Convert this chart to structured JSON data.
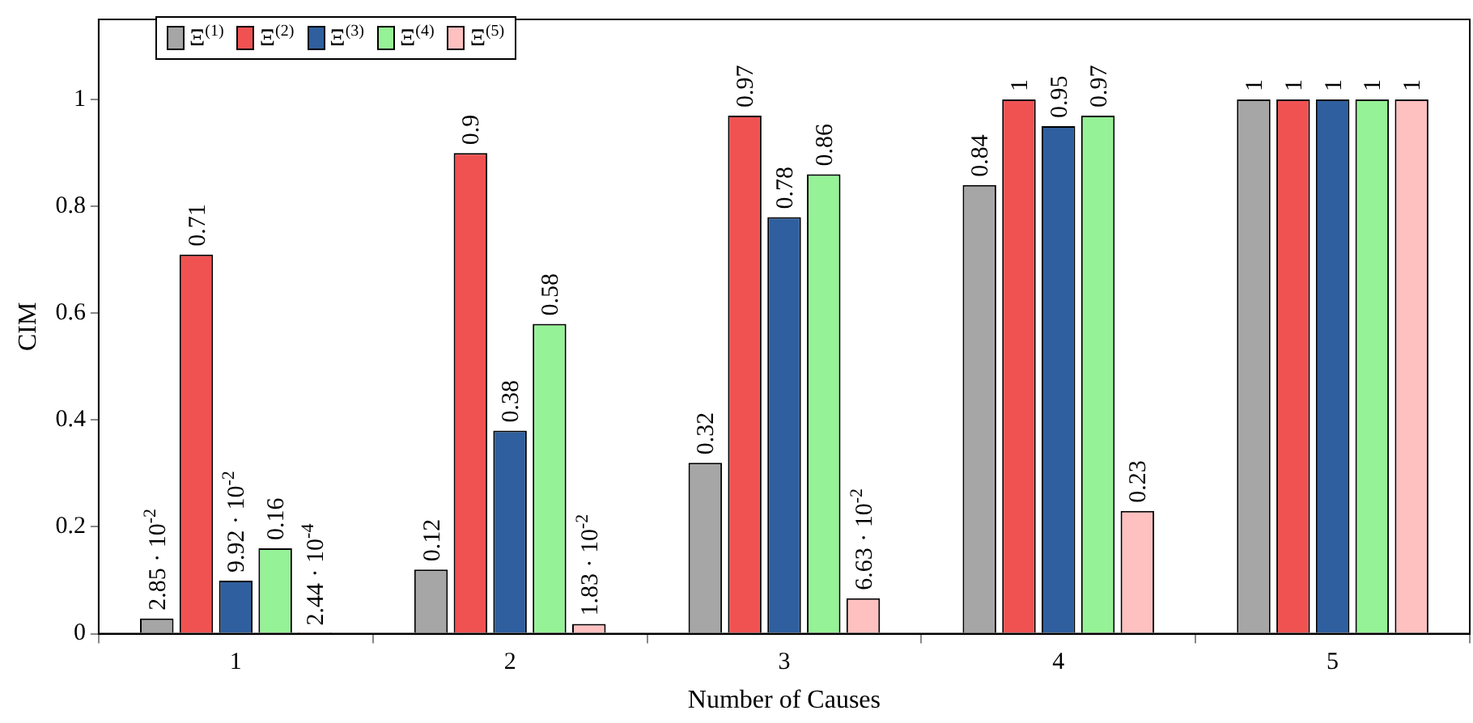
{
  "chart_data": {
    "type": "bar",
    "xlabel": "Number of Causes",
    "ylabel": "CIM",
    "categories": [
      "1",
      "2",
      "3",
      "4",
      "5"
    ],
    "series": [
      {
        "name": "Ξ$^{(1)}$",
        "color": "#a6a6a6",
        "values": [
          0.0285,
          0.12,
          0.32,
          0.84,
          1
        ],
        "value_labels": [
          "2.85 · 10$^{-2}$",
          "0.12",
          "0.32",
          "0.84",
          "1"
        ]
      },
      {
        "name": "Ξ$^{(2)}$",
        "color": "#f05252",
        "values": [
          0.71,
          0.9,
          0.97,
          1,
          1
        ],
        "value_labels": [
          "0.71",
          "0.9",
          "0.97",
          "1",
          "1"
        ]
      },
      {
        "name": "Ξ$^{(3)}$",
        "color": "#2f5f9e",
        "values": [
          0.0992,
          0.38,
          0.78,
          0.95,
          1
        ],
        "value_labels": [
          "9.92 · 10$^{-2}$",
          "0.38",
          "0.78",
          "0.95",
          "1"
        ]
      },
      {
        "name": "Ξ$^{(4)}$",
        "color": "#96f296",
        "values": [
          0.16,
          0.58,
          0.86,
          0.97,
          1
        ],
        "value_labels": [
          "0.16",
          "0.58",
          "0.86",
          "0.97",
          "1"
        ]
      },
      {
        "name": "Ξ$^{(5)}$",
        "color": "#ffc0c0",
        "values": [
          0.000244,
          0.0183,
          0.0663,
          0.23,
          1
        ],
        "value_labels": [
          "2.44 · 10$^{-4}$",
          "1.83 · 10$^{-2}$",
          "6.63 · 10$^{-2}$",
          "0.23",
          "1"
        ]
      }
    ],
    "ylim": [
      0,
      1.15
    ],
    "yticks": [
      0,
      0.2,
      0.4,
      0.6,
      0.8,
      1
    ],
    "grid": false,
    "legend": "top left"
  }
}
